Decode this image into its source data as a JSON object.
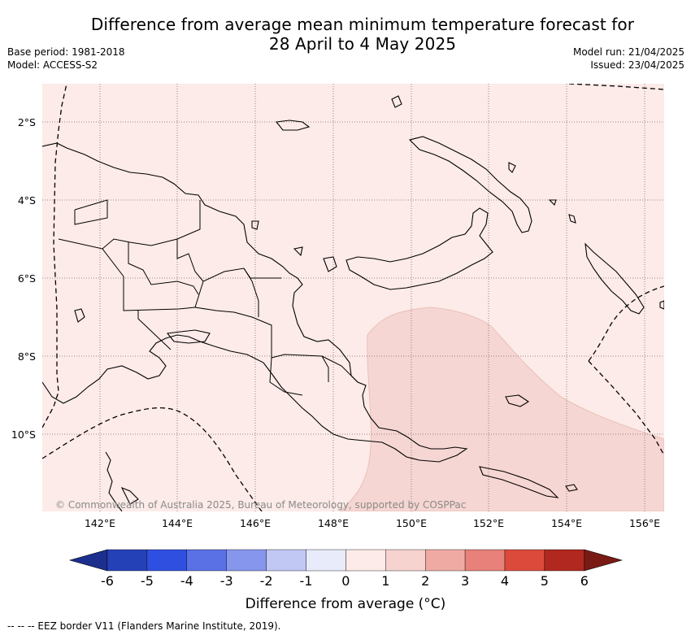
{
  "title_line1": "Difference from average mean minimum temperature forecast for",
  "title_line2": "28 April to 4 May 2025",
  "base_period": "Base period: 1981-2018",
  "model": "Model: ACCESS-S2",
  "model_run": "Model run: 21/04/2025",
  "issued": "Issued: 23/04/2025",
  "copyright": "© Commonwealth of Australia 2025, Bureau of Meteorology, supported by COSPPac",
  "lat_labels": [
    "2°S",
    "4°S",
    "6°S",
    "8°S",
    "10°S"
  ],
  "lon_labels": [
    "142°E",
    "144°E",
    "146°E",
    "148°E",
    "150°E",
    "152°E",
    "154°E",
    "156°E"
  ],
  "colorbar": {
    "ticks": [
      "-6",
      "-5",
      "-4",
      "-3",
      "-2",
      "-1",
      "0",
      "1",
      "2",
      "3",
      "4",
      "5",
      "6"
    ],
    "colors": [
      "#1c2f8f",
      "#2541b8",
      "#2f4fe0",
      "#5a71e6",
      "#8696ec",
      "#c1c8f4",
      "#e8ebfa",
      "#fcebe8",
      "#f6d3cf",
      "#f0aaa4",
      "#e78179",
      "#dc4a3c",
      "#b0281f",
      "#7a1a14"
    ],
    "label": "Difference from average (°C)"
  },
  "map_colors": {
    "background": "#fcebe8",
    "warm_region": "#f6d6d2"
  },
  "eez_note": "-- -- -- EEZ border V11 (Flanders Marine Institute, 2019)."
}
